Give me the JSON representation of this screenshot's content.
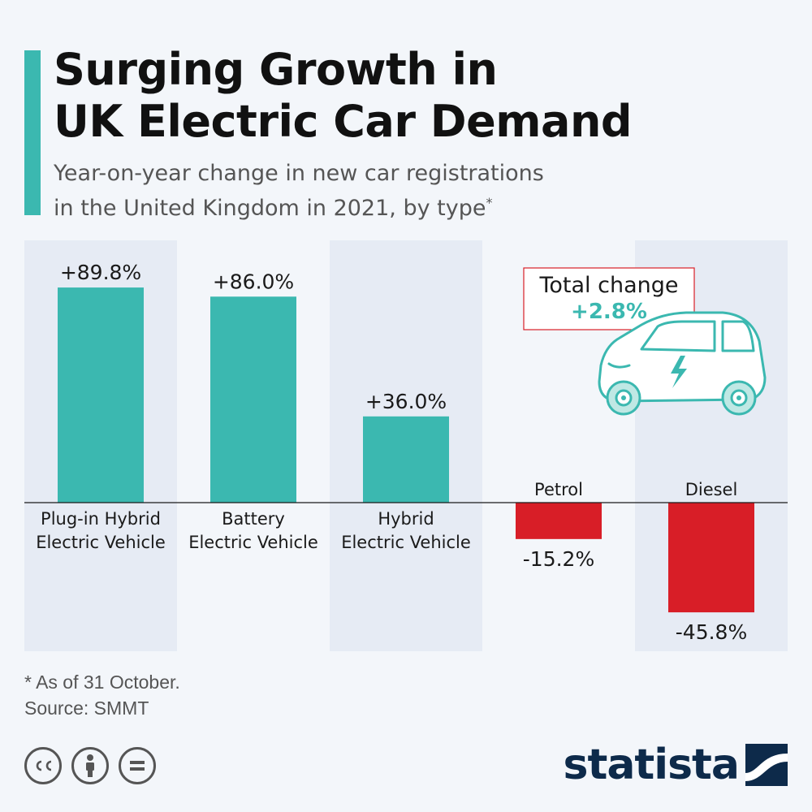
{
  "header": {
    "title_line1": "Surging Growth in",
    "title_line2": "UK Electric Car Demand",
    "subtitle_line1": "Year-on-year change in new car registrations",
    "subtitle_line2": "in the United Kingdom in 2021, by type",
    "subtitle_mark": "*"
  },
  "chart_data": {
    "type": "bar",
    "title": "Surging Growth in UK Electric Car Demand",
    "subtitle": "Year-on-year change in new car registrations in the United Kingdom in 2021, by type*",
    "categories": [
      "Plug-in Hybrid Electric Vehicle",
      "Battery Electric Vehicle",
      "Hybrid Electric Vehicle",
      "Petrol",
      "Diesel"
    ],
    "category_lines": [
      [
        "Plug-in Hybrid",
        "Electric Vehicle"
      ],
      [
        "Battery",
        "Electric Vehicle"
      ],
      [
        "Hybrid",
        "Electric Vehicle"
      ],
      [
        "Petrol"
      ],
      [
        "Diesel"
      ]
    ],
    "values": [
      89.8,
      86.0,
      36.0,
      -15.2,
      -45.8
    ],
    "value_labels": [
      "+89.8%",
      "+86.0%",
      "+36.0%",
      "-15.2%",
      "-45.8%"
    ],
    "unit": "%",
    "colors": {
      "positive": "#3bb8b0",
      "negative": "#d81e27"
    },
    "grid": false,
    "annotation": {
      "label": "Total change",
      "value": "+2.8%"
    }
  },
  "footer": {
    "note": "* As of 31 October.",
    "source": "Source: SMMT",
    "license_icons": [
      "cc-icon",
      "attribution-icon",
      "no-derivatives-icon"
    ],
    "brand": "statista"
  },
  "colors": {
    "accent": "#3bb8b0",
    "negative": "#d81e27",
    "band": "#e6ebf4",
    "background": "#f3f6fa",
    "brand": "#0d2a4a"
  }
}
